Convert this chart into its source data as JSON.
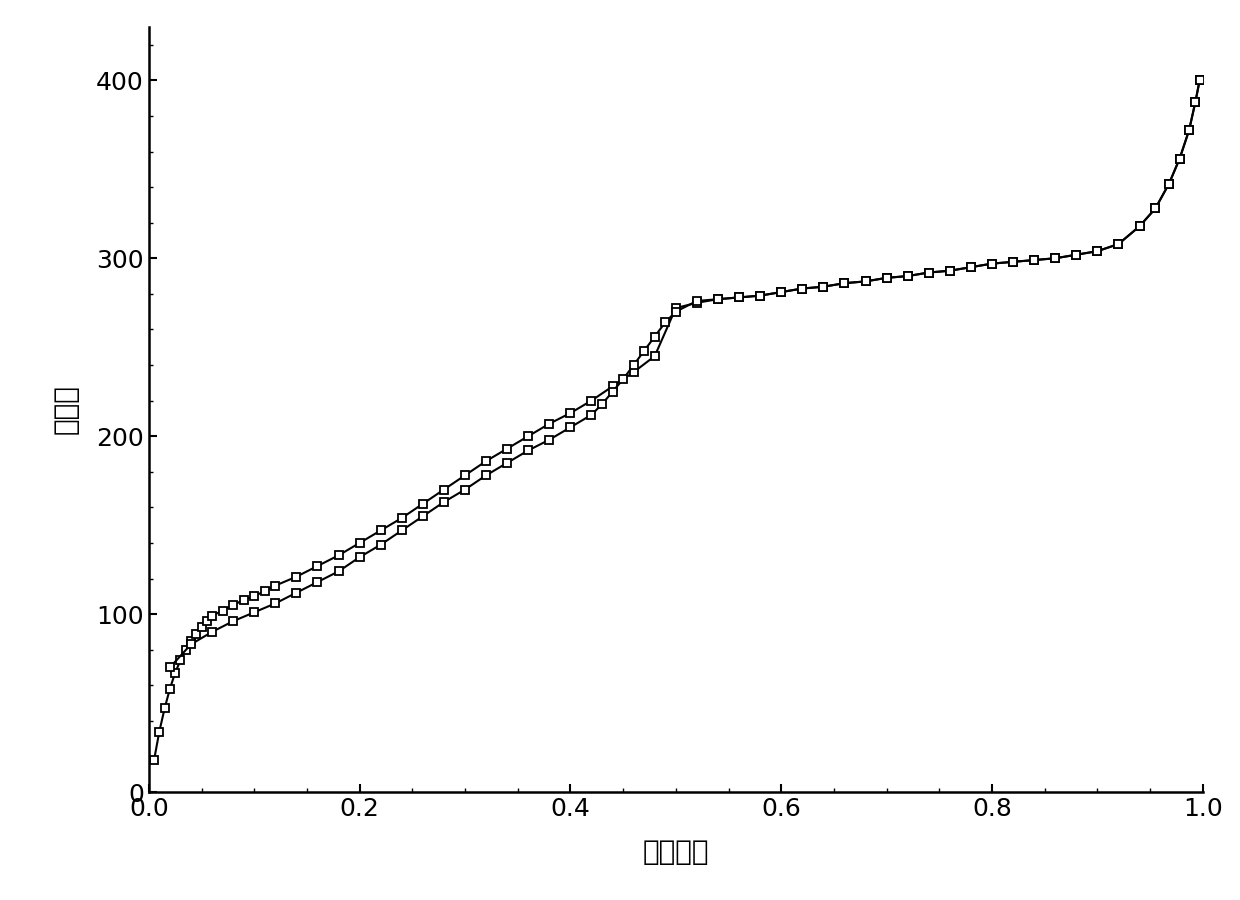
{
  "adsorption_x": [
    0.005,
    0.01,
    0.015,
    0.02,
    0.025,
    0.03,
    0.035,
    0.04,
    0.045,
    0.05,
    0.055,
    0.06,
    0.07,
    0.08,
    0.09,
    0.1,
    0.11,
    0.12,
    0.14,
    0.16,
    0.18,
    0.2,
    0.22,
    0.24,
    0.26,
    0.28,
    0.3,
    0.32,
    0.34,
    0.36,
    0.38,
    0.4,
    0.42,
    0.44,
    0.46,
    0.48,
    0.5,
    0.52,
    0.54,
    0.56,
    0.58,
    0.6,
    0.62,
    0.64,
    0.66,
    0.68,
    0.7,
    0.72,
    0.74,
    0.76,
    0.78,
    0.8,
    0.82,
    0.84,
    0.86,
    0.88,
    0.9,
    0.92,
    0.94,
    0.955,
    0.968,
    0.978,
    0.987,
    0.993,
    0.997
  ],
  "adsorption_y": [
    18,
    34,
    47,
    58,
    67,
    74,
    80,
    85,
    89,
    93,
    96,
    99,
    102,
    105,
    108,
    110,
    113,
    116,
    121,
    127,
    133,
    140,
    147,
    154,
    162,
    170,
    178,
    186,
    193,
    200,
    207,
    213,
    220,
    228,
    236,
    245,
    272,
    275,
    277,
    278,
    279,
    281,
    283,
    284,
    286,
    287,
    289,
    290,
    292,
    293,
    295,
    297,
    298,
    299,
    300,
    302,
    304,
    308,
    318,
    328,
    342,
    356,
    372,
    388,
    400
  ],
  "desorption_x": [
    0.997,
    0.993,
    0.987,
    0.978,
    0.968,
    0.955,
    0.94,
    0.92,
    0.9,
    0.88,
    0.86,
    0.84,
    0.82,
    0.8,
    0.78,
    0.76,
    0.74,
    0.72,
    0.7,
    0.68,
    0.66,
    0.64,
    0.62,
    0.6,
    0.58,
    0.56,
    0.54,
    0.52,
    0.5,
    0.49,
    0.48,
    0.47,
    0.46,
    0.45,
    0.44,
    0.43,
    0.42,
    0.4,
    0.38,
    0.36,
    0.34,
    0.32,
    0.3,
    0.28,
    0.26,
    0.24,
    0.22,
    0.2,
    0.18,
    0.16,
    0.14,
    0.12,
    0.1,
    0.08,
    0.06,
    0.04,
    0.02
  ],
  "desorption_y": [
    400,
    388,
    372,
    356,
    342,
    328,
    318,
    308,
    304,
    302,
    300,
    299,
    298,
    297,
    295,
    293,
    292,
    290,
    289,
    287,
    286,
    284,
    283,
    281,
    279,
    278,
    277,
    276,
    270,
    264,
    256,
    248,
    240,
    232,
    225,
    218,
    212,
    205,
    198,
    192,
    185,
    178,
    170,
    163,
    155,
    147,
    139,
    132,
    124,
    118,
    112,
    106,
    101,
    96,
    90,
    83,
    70
  ],
  "xlabel": "相对压力",
  "ylabel": "吸附量",
  "xlim": [
    0.0,
    1.0
  ],
  "ylim": [
    0,
    430
  ],
  "xticks": [
    0.0,
    0.2,
    0.4,
    0.6,
    0.8,
    1.0
  ],
  "yticks": [
    0,
    100,
    200,
    300,
    400
  ],
  "line_color": "#000000",
  "marker": "s",
  "markersize": 6,
  "markerfacecolor": "#ffffff",
  "markeredgecolor": "#000000",
  "markeredgewidth": 1.3,
  "linewidth": 1.5,
  "xlabel_fontsize": 20,
  "ylabel_fontsize": 20,
  "tick_fontsize": 18,
  "background_color": "#ffffff"
}
